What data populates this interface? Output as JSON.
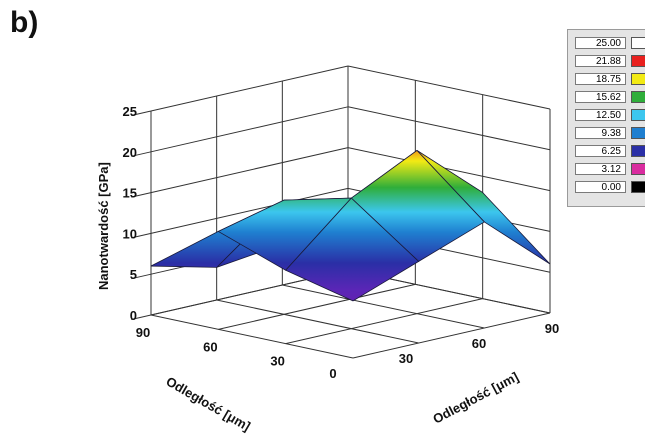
{
  "panel_label": "b)",
  "chart_data": {
    "type": "surface3d",
    "zlabel": "Nanotwardość [GPa]",
    "xlabel": "Odległość [μm]",
    "ylabel": "Odległość [μm]",
    "z_ticks": [
      "0",
      "5",
      "10",
      "15",
      "20",
      "25"
    ],
    "x_ticks": [
      "0",
      "30",
      "60",
      "90"
    ],
    "y_ticks": [
      "30",
      "60",
      "90"
    ],
    "zlim": [
      0,
      25
    ],
    "xlim": [
      0,
      90
    ],
    "ylim": [
      0,
      90
    ],
    "grid": true,
    "legend_placement": "top-right",
    "colorscale": [
      {
        "value": "25.00",
        "color": "#ffffff"
      },
      {
        "value": "21.88",
        "color": "#e8201e"
      },
      {
        "value": "18.75",
        "color": "#f2ea14"
      },
      {
        "value": "15.62",
        "color": "#2fae3a"
      },
      {
        "value": "12.50",
        "color": "#3cc6ee"
      },
      {
        "value": "9.38",
        "color": "#1f7fd0"
      },
      {
        "value": "6.25",
        "color": "#2a2fa6"
      },
      {
        "value": "3.12",
        "color": "#d92c9f"
      },
      {
        "value": "0.00",
        "color": "#000000"
      }
    ],
    "grid_x": [
      0,
      30,
      60,
      90
    ],
    "grid_y": [
      0,
      30,
      60,
      90
    ],
    "z_values": [
      [
        7,
        9,
        12,
        6
      ],
      [
        10,
        16,
        14,
        4
      ],
      [
        13,
        20,
        12,
        5
      ],
      [
        6,
        13,
        9,
        4
      ]
    ]
  }
}
